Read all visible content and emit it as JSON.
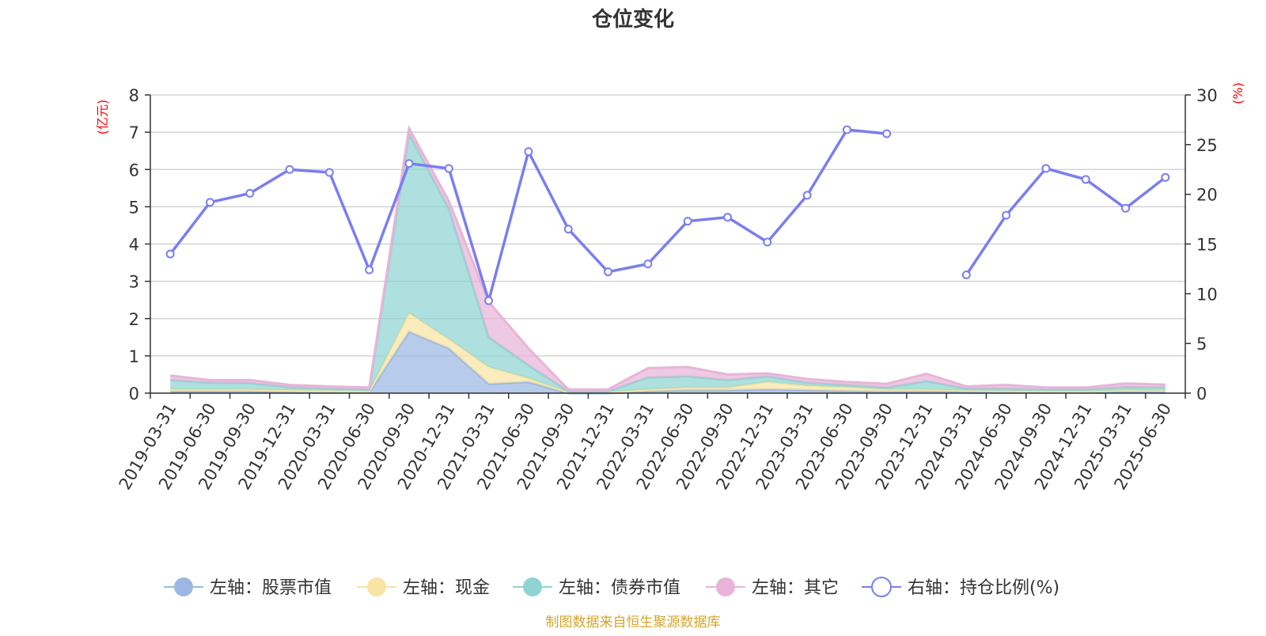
{
  "title": "仓位变化",
  "source": "制图数据来自恒生聚源数据库",
  "chart_data": {
    "type": "area",
    "title": "仓位变化",
    "categories": [
      "2019-03-31",
      "2019-06-30",
      "2019-09-30",
      "2019-12-31",
      "2020-03-31",
      "2020-06-30",
      "2020-09-30",
      "2020-12-31",
      "2021-03-31",
      "2021-06-30",
      "2021-09-30",
      "2021-12-31",
      "2022-03-31",
      "2022-06-30",
      "2022-09-30",
      "2022-12-31",
      "2023-03-31",
      "2023-06-30",
      "2023-09-30",
      "2023-12-31",
      "2024-03-31",
      "2024-06-30",
      "2024-09-30",
      "2024-12-31",
      "2025-03-31",
      "2025-06-30"
    ],
    "left_axis": {
      "unit": "(亿元)",
      "ylim": [
        0,
        8
      ],
      "ticks": [
        "0",
        "1",
        "2",
        "3",
        "4",
        "5",
        "6",
        "7",
        "8"
      ]
    },
    "right_axis": {
      "unit": "(%)",
      "ylim": [
        0,
        30
      ],
      "ticks": [
        "0",
        "5",
        "10",
        "15",
        "20",
        "25",
        "30"
      ]
    },
    "grid": true,
    "legend_position": "bottom",
    "series": [
      {
        "name": "左轴：股票市值",
        "axis": "left",
        "type": "area",
        "color": "#9bb7e2",
        "values": [
          0.05,
          0.05,
          0.05,
          0.03,
          0.02,
          0.02,
          1.65,
          1.2,
          0.25,
          0.3,
          0.0,
          0.0,
          0.05,
          0.08,
          0.08,
          0.1,
          0.08,
          0.06,
          0.04,
          0.05,
          0.05,
          0.04,
          0.03,
          0.03,
          0.05,
          0.04
        ]
      },
      {
        "name": "左轴：现金",
        "axis": "left",
        "type": "area",
        "color": "#f8e4a3",
        "values": [
          0.05,
          0.05,
          0.05,
          0.05,
          0.05,
          0.03,
          0.5,
          0.25,
          0.45,
          0.1,
          0.03,
          0.03,
          0.05,
          0.07,
          0.07,
          0.2,
          0.12,
          0.1,
          0.06,
          0.05,
          0.02,
          0.02,
          0.02,
          0.02,
          0.03,
          0.03
        ]
      },
      {
        "name": "左轴：债券市值",
        "axis": "left",
        "type": "area",
        "color": "#8fd4d2",
        "values": [
          0.25,
          0.18,
          0.17,
          0.08,
          0.05,
          0.05,
          4.8,
          3.5,
          0.8,
          0.35,
          0.02,
          0.02,
          0.32,
          0.3,
          0.2,
          0.15,
          0.08,
          0.06,
          0.05,
          0.22,
          0.05,
          0.06,
          0.05,
          0.05,
          0.08,
          0.08
        ]
      },
      {
        "name": "左轴：其它",
        "axis": "left",
        "type": "area",
        "color": "#e8b4d8",
        "values": [
          0.12,
          0.07,
          0.08,
          0.06,
          0.06,
          0.05,
          0.15,
          0.2,
          0.95,
          0.45,
          0.05,
          0.05,
          0.25,
          0.25,
          0.15,
          0.08,
          0.1,
          0.08,
          0.1,
          0.2,
          0.06,
          0.1,
          0.05,
          0.05,
          0.1,
          0.08
        ]
      },
      {
        "name": "右轴：持仓比例(%)",
        "axis": "right",
        "type": "line",
        "color": "#7b7ef0",
        "values": [
          14.0,
          19.2,
          20.1,
          22.5,
          22.2,
          12.4,
          23.1,
          22.6,
          9.3,
          24.3,
          16.5,
          12.2,
          13.0,
          17.3,
          17.7,
          15.2,
          19.9,
          26.5,
          26.1,
          null,
          11.9,
          17.9,
          22.6,
          21.5,
          18.6,
          21.7
        ]
      }
    ]
  }
}
